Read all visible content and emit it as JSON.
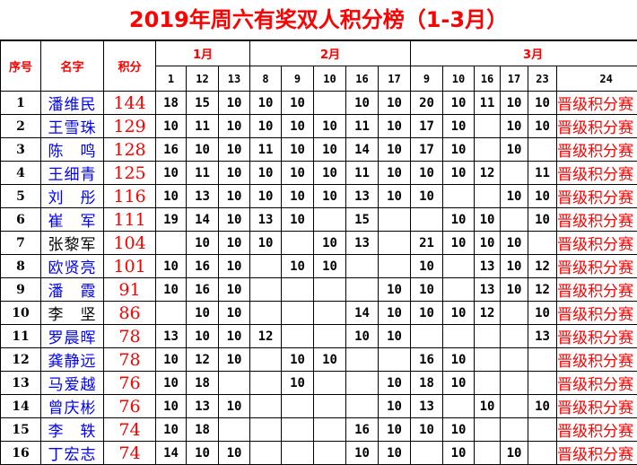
{
  "title": "2019年周六有奖双人积分榜（1-3月）",
  "headers": {
    "seq": "序号",
    "name": "名字",
    "score": "积分",
    "months": [
      {
        "label": "1月",
        "days": [
          "1",
          "12",
          "13"
        ]
      },
      {
        "label": "2月",
        "days": [
          "8",
          "9",
          "10",
          "16",
          "17"
        ]
      },
      {
        "label": "3月",
        "days": [
          "9",
          "10",
          "16",
          "17",
          "23"
        ]
      }
    ],
    "last_day": "24"
  },
  "colors": {
    "title": "#ff0000",
    "name_default": "#0000ff",
    "name_alt": "#000000",
    "score": "#ff0000"
  },
  "rows": [
    {
      "seq": "1",
      "name": "潘维民",
      "blue": true,
      "score": "144",
      "cells": [
        "18",
        "15",
        "10",
        "10",
        "10",
        "",
        "10",
        "10",
        "20",
        "10",
        "11",
        "10",
        "10"
      ],
      "status": "晋级积分赛"
    },
    {
      "seq": "2",
      "name": "王雪珠",
      "blue": true,
      "score": "129",
      "cells": [
        "10",
        "11",
        "10",
        "10",
        "10",
        "10",
        "11",
        "10",
        "17",
        "10",
        "",
        "10",
        "10"
      ],
      "status": "晋级积分赛"
    },
    {
      "seq": "3",
      "name": "陈　鸣",
      "blue": true,
      "score": "128",
      "cells": [
        "16",
        "10",
        "10",
        "11",
        "10",
        "10",
        "14",
        "10",
        "17",
        "10",
        "",
        "10",
        ""
      ],
      "status": "晋级积分赛"
    },
    {
      "seq": "4",
      "name": "王细青",
      "blue": true,
      "score": "125",
      "cells": [
        "10",
        "11",
        "10",
        "10",
        "10",
        "10",
        "11",
        "10",
        "10",
        "10",
        "12",
        "",
        "11"
      ],
      "status": "晋级积分赛"
    },
    {
      "seq": "5",
      "name": "刘　彤",
      "blue": true,
      "score": "116",
      "cells": [
        "10",
        "13",
        "10",
        "10",
        "10",
        "10",
        "13",
        "10",
        "10",
        "",
        "",
        "10",
        "10"
      ],
      "status": "晋级积分赛"
    },
    {
      "seq": "6",
      "name": "崔　军",
      "blue": true,
      "score": "111",
      "cells": [
        "19",
        "14",
        "10",
        "13",
        "10",
        "",
        "15",
        "",
        "",
        "10",
        "10",
        "",
        "10"
      ],
      "status": "晋级积分赛"
    },
    {
      "seq": "7",
      "name": "张黎军",
      "blue": false,
      "score": "104",
      "cells": [
        "",
        "10",
        "10",
        "10",
        "",
        "10",
        "13",
        "",
        "21",
        "10",
        "10",
        "10",
        ""
      ],
      "status": "晋级积分赛"
    },
    {
      "seq": "8",
      "name": "欧贤亮",
      "blue": true,
      "score": "101",
      "cells": [
        "10",
        "16",
        "10",
        "",
        "10",
        "10",
        "",
        "",
        "10",
        "",
        "13",
        "10",
        "12"
      ],
      "status": "晋级积分赛"
    },
    {
      "seq": "9",
      "name": "潘　霞",
      "blue": true,
      "score": "91",
      "cells": [
        "10",
        "16",
        "10",
        "",
        "",
        "",
        "",
        "10",
        "10",
        "",
        "13",
        "10",
        "12"
      ],
      "status": "晋级积分赛"
    },
    {
      "seq": "10",
      "name": "李　坚",
      "blue": false,
      "score": "86",
      "cells": [
        "",
        "10",
        "10",
        "",
        "",
        "",
        "14",
        "10",
        "10",
        "10",
        "12",
        "",
        "10"
      ],
      "status": "晋级积分赛"
    },
    {
      "seq": "11",
      "name": "罗晨晖",
      "blue": true,
      "score": "78",
      "cells": [
        "13",
        "10",
        "10",
        "12",
        "",
        "",
        "10",
        "10",
        "",
        "",
        "",
        "",
        "13"
      ],
      "status": "晋级积分赛"
    },
    {
      "seq": "12",
      "name": "龚静远",
      "blue": true,
      "score": "78",
      "cells": [
        "10",
        "12",
        "10",
        "",
        "10",
        "10",
        "",
        "",
        "16",
        "10",
        "",
        "",
        ""
      ],
      "status": "晋级积分赛"
    },
    {
      "seq": "13",
      "name": "马爱越",
      "blue": true,
      "score": "76",
      "cells": [
        "10",
        "18",
        "",
        "",
        "10",
        "",
        "",
        "10",
        "18",
        "10",
        "",
        "",
        ""
      ],
      "status": "晋级积分赛"
    },
    {
      "seq": "14",
      "name": "曾庆彬",
      "blue": true,
      "score": "76",
      "cells": [
        "10",
        "13",
        "10",
        "",
        "",
        "",
        "",
        "10",
        "13",
        "",
        "10",
        "",
        "10"
      ],
      "status": "晋级积分赛"
    },
    {
      "seq": "15",
      "name": "李　轶",
      "blue": true,
      "score": "74",
      "cells": [
        "10",
        "18",
        "",
        "",
        "",
        "",
        "16",
        "10",
        "10",
        "10",
        "",
        "",
        ""
      ],
      "status": "晋级积分赛"
    },
    {
      "seq": "16",
      "name": "丁宏志",
      "blue": true,
      "score": "74",
      "cells": [
        "14",
        "10",
        "10",
        "",
        "",
        "",
        "10",
        "10",
        "",
        "10",
        "",
        "10",
        ""
      ],
      "status": "晋级积分赛"
    }
  ]
}
